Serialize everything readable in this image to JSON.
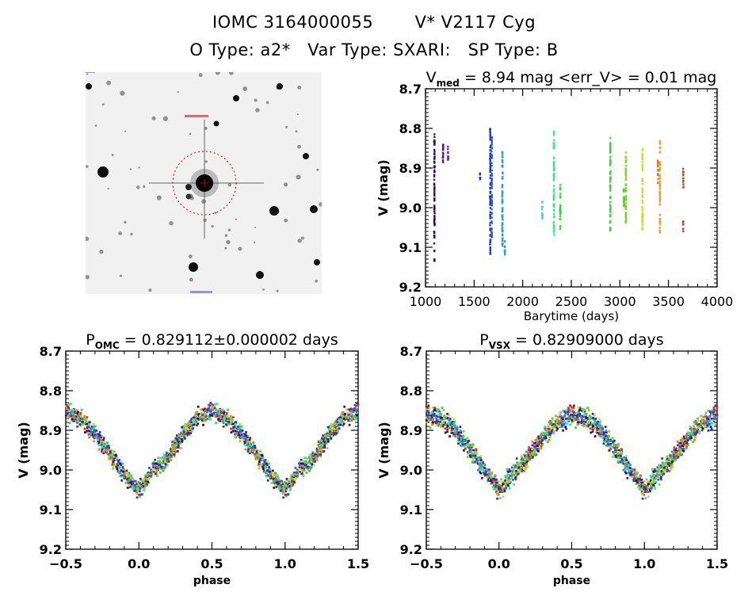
{
  "header": {
    "line1_id": "IOMC 3164000055",
    "line1_name": "V* V2117 Cyg",
    "line2": "O Type: a2*   Var Type: SXARI:   SP Type: B"
  },
  "sky_image": {
    "description": "Grayscale star field finder chart centred on target with red dashed aperture circle",
    "marker_color": "#cc0000"
  },
  "season_colors": [
    "#3b0a52",
    "#4a1a8c",
    "#5a2aa8",
    "#2233cc",
    "#1f5fe0",
    "#2a9ad8",
    "#3fd6d6",
    "#3be38a",
    "#3ad13a",
    "#7ad62a",
    "#c8e020",
    "#f0a020",
    "#e07a20",
    "#d03a18"
  ],
  "chart_data": [
    {
      "id": "time_series",
      "type": "scatter",
      "title_main": "V",
      "title_sub": "med",
      "title_rest": " = 8.94 mag <err_V> = 0.01 mag",
      "xlabel": "Barytime (days)",
      "ylabel": "V (mag)",
      "xlim": [
        1000,
        4000
      ],
      "ylim": [
        9.2,
        8.7
      ],
      "xticks": [
        1000,
        1500,
        2000,
        2500,
        3000,
        3500,
        4000
      ],
      "yticks": [
        8.7,
        8.8,
        8.9,
        9.0,
        9.1,
        9.2
      ],
      "ytick_labels": [
        "8.7",
        "8.8",
        "8.9",
        "9.0",
        "9.1",
        "9.2"
      ],
      "seasons": [
        {
          "t": 1090,
          "vmin": 8.8,
          "vmax": 9.14,
          "color_index": 0
        },
        {
          "t": 1180,
          "vmin": 8.84,
          "vmax": 8.89,
          "color_index": 1
        },
        {
          "t": 1230,
          "vmin": 8.84,
          "vmax": 8.88,
          "color_index": 2
        },
        {
          "t": 1560,
          "vmin": 8.91,
          "vmax": 8.93,
          "color_index": 3
        },
        {
          "t": 1665,
          "vmin": 8.8,
          "vmax": 9.12,
          "color_index": 3
        },
        {
          "t": 1680,
          "vmin": 8.82,
          "vmax": 9.08,
          "color_index": 4
        },
        {
          "t": 1790,
          "vmin": 8.85,
          "vmax": 9.1,
          "color_index": 5
        },
        {
          "t": 1815,
          "vmin": 9.08,
          "vmax": 9.12,
          "color_index": 5
        },
        {
          "t": 2200,
          "vmin": 8.98,
          "vmax": 9.03,
          "color_index": 6
        },
        {
          "t": 2320,
          "vmin": 8.8,
          "vmax": 9.07,
          "color_index": 7
        },
        {
          "t": 2385,
          "vmin": 8.94,
          "vmax": 9.06,
          "color_index": 8
        },
        {
          "t": 2900,
          "vmin": 8.82,
          "vmax": 9.06,
          "color_index": 8
        },
        {
          "t": 3040,
          "vmin": 8.95,
          "vmax": 9.01,
          "color_index": 8
        },
        {
          "t": 3060,
          "vmin": 8.86,
          "vmax": 9.04,
          "color_index": 9
        },
        {
          "t": 3230,
          "vmin": 8.85,
          "vmax": 9.06,
          "color_index": 10
        },
        {
          "t": 3410,
          "vmin": 8.83,
          "vmax": 9.07,
          "color_index": 11
        },
        {
          "t": 3390,
          "vmin": 8.88,
          "vmax": 8.94,
          "color_index": 12
        },
        {
          "t": 3650,
          "vmin": 8.9,
          "vmax": 8.95,
          "color_index": 13
        },
        {
          "t": 3650,
          "vmin": 9.03,
          "vmax": 9.06,
          "color_index": 13
        }
      ]
    },
    {
      "id": "phase_omc",
      "type": "scatter",
      "title_main": "P",
      "title_sub": "OMC",
      "title_rest": " = 0.829112±0.000002 days",
      "xlabel": "phase",
      "ylabel": "V (mag)",
      "xlim": [
        -0.5,
        1.5
      ],
      "ylim": [
        9.2,
        8.7
      ],
      "xticks": [
        -0.5,
        0.0,
        0.5,
        1.0,
        1.5
      ],
      "xtick_labels": [
        "−0.5",
        "0.0",
        "0.5",
        "1.0",
        "1.5"
      ],
      "yticks": [
        8.7,
        8.8,
        8.9,
        9.0,
        9.1,
        9.2
      ],
      "ytick_labels": [
        "8.7",
        "8.8",
        "8.9",
        "9.0",
        "9.1",
        "9.2"
      ],
      "mean_curve": {
        "phase": [
          0.0,
          0.1,
          0.2,
          0.3,
          0.4,
          0.5,
          0.6,
          0.7,
          0.8,
          0.9,
          1.0
        ],
        "mag": [
          9.05,
          9.0,
          8.97,
          8.91,
          8.87,
          8.85,
          8.87,
          8.91,
          8.96,
          9.01,
          9.05
        ]
      },
      "scatter_mag": 0.03,
      "max_mag": 8.8,
      "min_mag": 9.13
    },
    {
      "id": "phase_vsx",
      "type": "scatter",
      "title_main": "P",
      "title_sub": "VSX",
      "title_rest": " = 0.82909000 days",
      "xlabel": "phase",
      "ylabel": "V (mag)",
      "xlim": [
        -0.5,
        1.5
      ],
      "ylim": [
        9.2,
        8.7
      ],
      "xticks": [
        -0.5,
        0.0,
        0.5,
        1.0,
        1.5
      ],
      "xtick_labels": [
        "−0.5",
        "0.0",
        "0.5",
        "1.0",
        "1.5"
      ],
      "yticks": [
        8.7,
        8.8,
        8.9,
        9.0,
        9.1,
        9.2
      ],
      "ytick_labels": [
        "8.7",
        "8.8",
        "8.9",
        "9.0",
        "9.1",
        "9.2"
      ],
      "mean_curve": {
        "phase": [
          0.0,
          0.1,
          0.2,
          0.3,
          0.4,
          0.5,
          0.6,
          0.7,
          0.8,
          0.9,
          1.0
        ],
        "mag": [
          9.05,
          9.01,
          8.97,
          8.92,
          8.88,
          8.86,
          8.87,
          8.9,
          8.95,
          9.0,
          9.05
        ]
      },
      "scatter_mag": 0.035,
      "max_mag": 8.8,
      "min_mag": 9.13
    }
  ]
}
